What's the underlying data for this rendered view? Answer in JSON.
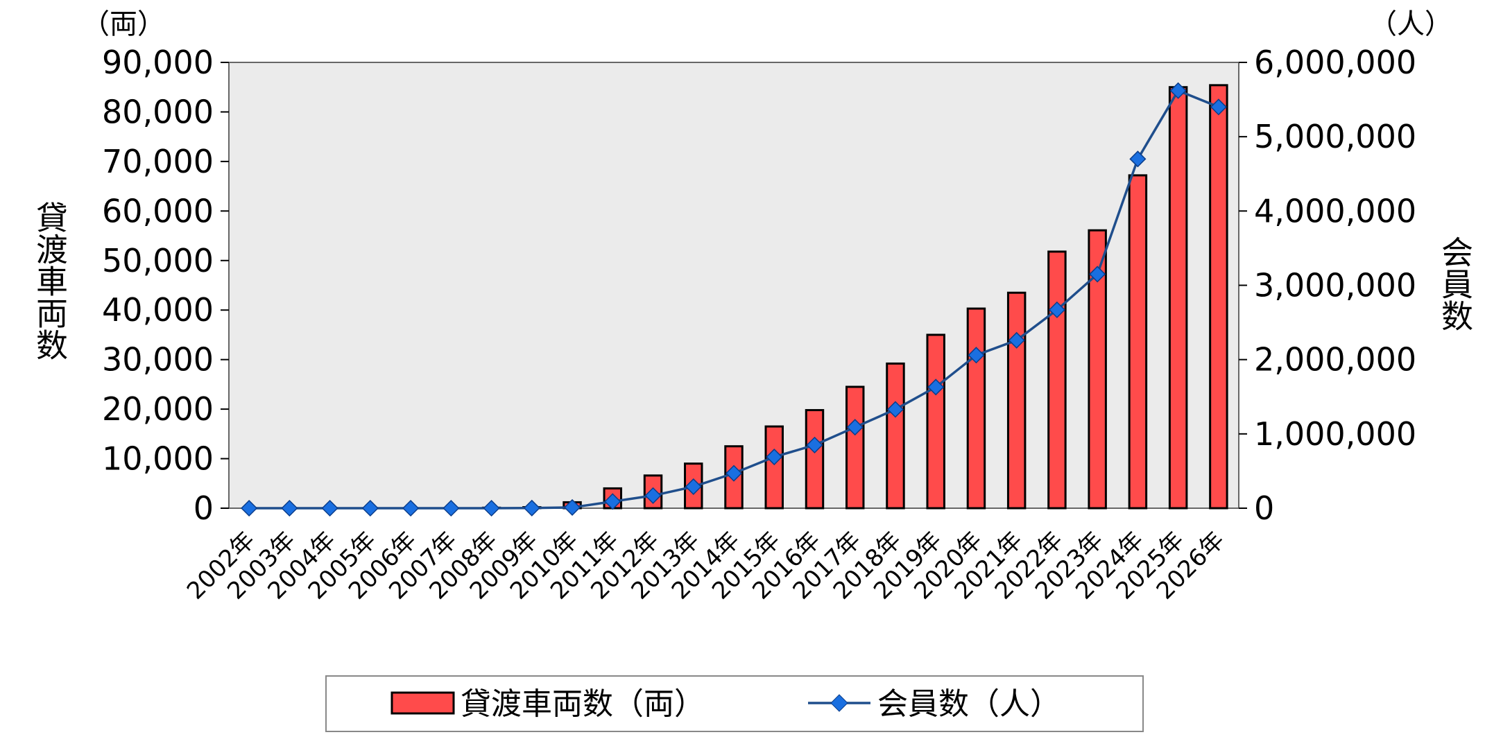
{
  "chart_data": {
    "type": "bar+line",
    "categories": [
      "2002年",
      "2003年",
      "2004年",
      "2005年",
      "2006年",
      "2007年",
      "2008年",
      "2009年",
      "2010年",
      "2011年",
      "2012年",
      "2013年",
      "2014年",
      "2015年",
      "2016年",
      "2017年",
      "2018年",
      "2019年",
      "2020年",
      "2021年",
      "2022年",
      "2023年",
      "2024年",
      "2025年",
      "2026年"
    ],
    "series": [
      {
        "name": "貸渡車両数（両）",
        "kind": "bar",
        "axis": "left",
        "color": "#ff4b4b",
        "values": [
          0,
          0,
          0,
          0,
          0,
          0,
          100,
          200,
          1200,
          4000,
          6600,
          9000,
          12500,
          16500,
          19800,
          24500,
          29200,
          35000,
          40300,
          43500,
          51800,
          56100,
          67200,
          85000,
          85400
        ]
      },
      {
        "name": "会員数（人）",
        "kind": "line",
        "axis": "right",
        "color": "#1f4e8c",
        "marker_color": "#1a6fe0",
        "values": [
          0,
          0,
          0,
          0,
          0,
          0,
          0,
          2000,
          10000,
          90000,
          170000,
          290000,
          470000,
          690000,
          850000,
          1090000,
          1330000,
          1630000,
          2060000,
          2260000,
          2670000,
          3150000,
          4700000,
          5620000,
          5400000
        ]
      }
    ],
    "y_left": {
      "label": "貸渡車両数",
      "unit": "（両）",
      "ticks": [
        "0",
        "10,000",
        "20,000",
        "30,000",
        "40,000",
        "50,000",
        "60,000",
        "70,000",
        "80,000",
        "90,000"
      ],
      "ylim": [
        0,
        90000
      ]
    },
    "y_right": {
      "label": "会員数",
      "unit": "（人）",
      "ticks": [
        "0",
        "1,000,000",
        "2,000,000",
        "3,000,000",
        "4,000,000",
        "5,000,000",
        "6,000,000"
      ],
      "ylim": [
        0,
        6000000
      ]
    },
    "plot_background": "#ebebeb",
    "legend": {
      "placement": "bottom",
      "items": [
        "貸渡車両数（両）",
        "会員数（人）"
      ]
    }
  }
}
